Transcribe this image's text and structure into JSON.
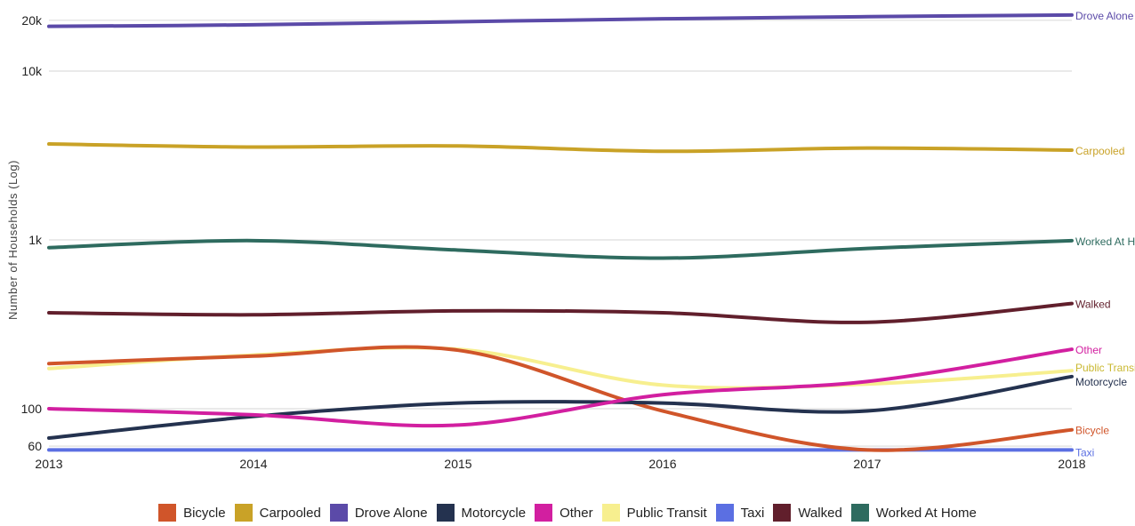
{
  "chart_data": {
    "type": "line",
    "title": "",
    "xlabel": "",
    "ylabel": "Number of Households (Log)",
    "y_scale": "log",
    "ylim": [
      55,
      22000
    ],
    "x": [
      "2013",
      "2014",
      "2015",
      "2016",
      "2017",
      "2018"
    ],
    "y_ticks": [
      {
        "value": 60,
        "label": "60"
      },
      {
        "value": 100,
        "label": "100"
      },
      {
        "value": 1000,
        "label": "1k"
      },
      {
        "value": 10000,
        "label": "10k"
      },
      {
        "value": 20000,
        "label": "20k"
      }
    ],
    "grid": true,
    "legend_position": "bottom",
    "series": [
      {
        "name": "Bicycle",
        "color": "#d0552a",
        "values": [
          185,
          205,
          222,
          97,
          57,
          75
        ]
      },
      {
        "name": "Carpooled",
        "color": "#c9a227",
        "values": [
          3700,
          3550,
          3600,
          3350,
          3500,
          3400
        ]
      },
      {
        "name": "Drove Alone",
        "color": "#5b4aa8",
        "values": [
          18400,
          18800,
          19600,
          20400,
          21000,
          21500
        ]
      },
      {
        "name": "Motorcycle",
        "color": "#24324f",
        "values": [
          67,
          90,
          108,
          108,
          97,
          155
        ]
      },
      {
        "name": "Other",
        "color": "#d21fa0",
        "values": [
          100,
          92,
          80,
          121,
          145,
          225
        ]
      },
      {
        "name": "Public Transit",
        "color": "#f7ef8f",
        "values": [
          173,
          208,
          225,
          138,
          140,
          168
        ]
      },
      {
        "name": "Taxi",
        "color": "#5b6fe2",
        "values": [
          57,
          57,
          57,
          57,
          57,
          57
        ]
      },
      {
        "name": "Walked",
        "color": "#611f2c",
        "values": [
          370,
          360,
          380,
          370,
          325,
          420
        ]
      },
      {
        "name": "Worked At Home",
        "color": "#2e6b5f",
        "values": [
          900,
          990,
          870,
          780,
          890,
          990
        ]
      }
    ]
  }
}
